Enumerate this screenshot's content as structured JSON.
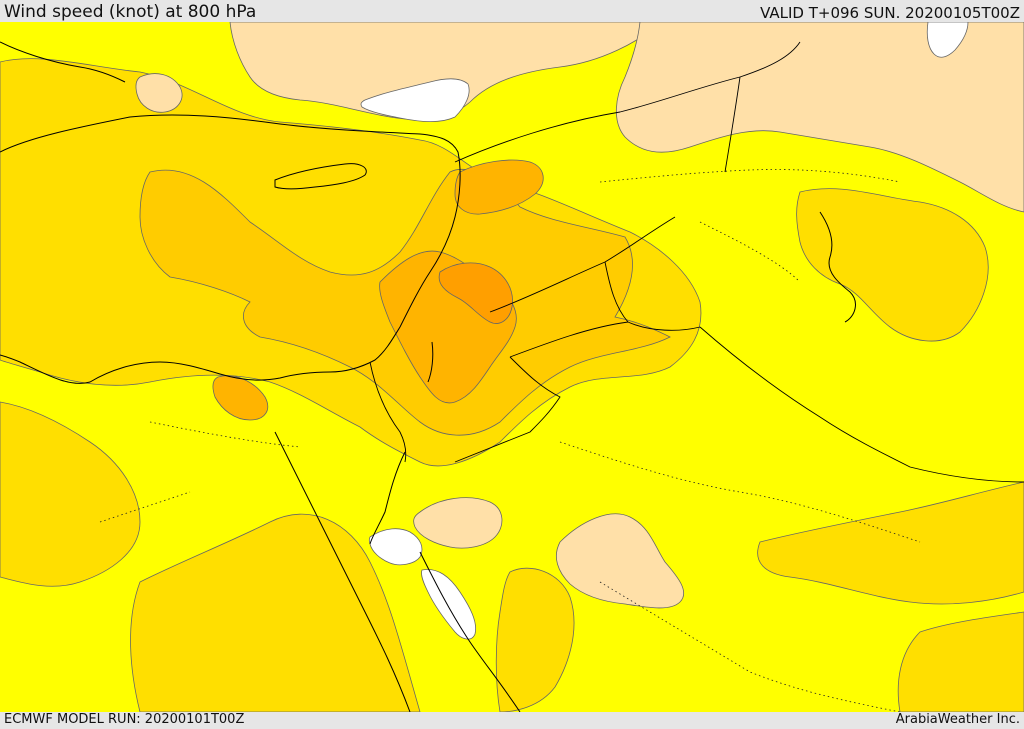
{
  "header": {
    "title": "Wind speed (knot) at 800 hPa",
    "valid": "VALID T+096 SUN. 20200105T00Z"
  },
  "footer": {
    "model_run": "ECMWF MODEL RUN: 20200101T00Z",
    "credit": "ArabiaWeather Inc."
  },
  "colors": {
    "background": "#ffff00",
    "band_gold": "#ffdf00",
    "band_orange_light": "#ffcc00",
    "band_orange": "#ffb400",
    "band_orange_dark": "#ff9f00",
    "low_wind_tan": "#ffe0a8",
    "calm_white": "#ffffff",
    "coastline": "#000000",
    "contour": "#555555"
  }
}
